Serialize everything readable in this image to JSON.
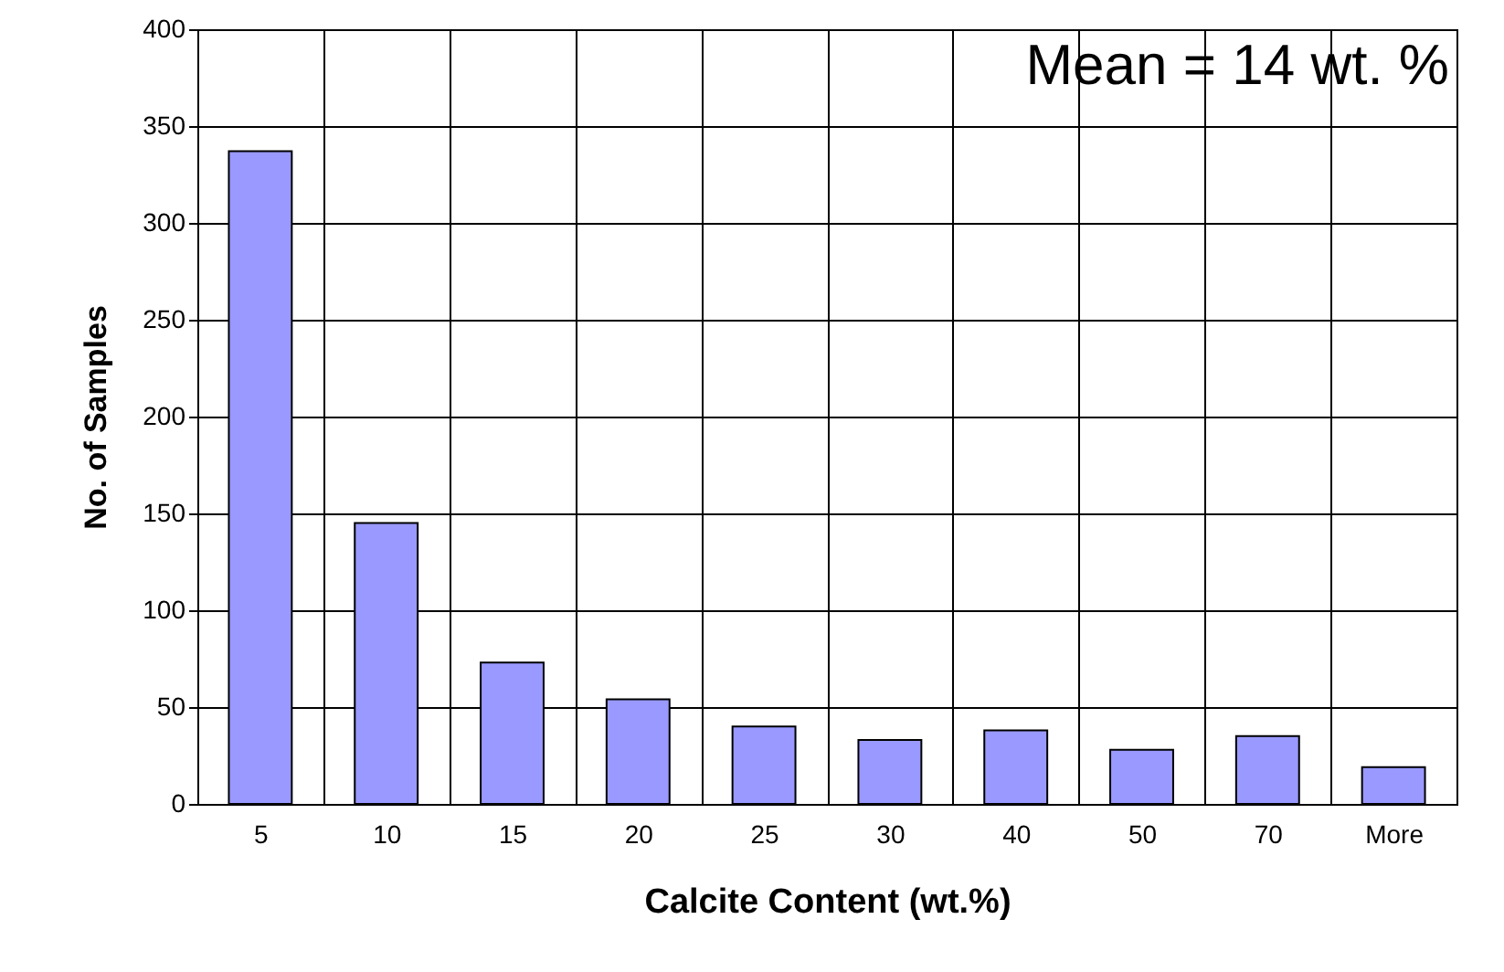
{
  "chart_data": {
    "type": "bar",
    "xlabel": "Calcite Content (wt.%)",
    "ylabel": "No. of Samples",
    "categories": [
      "5",
      "10",
      "15",
      "20",
      "25",
      "30",
      "40",
      "50",
      "70",
      "More"
    ],
    "values": [
      337,
      145,
      73,
      54,
      40,
      33,
      38,
      28,
      35,
      19
    ],
    "color": "#9999ff",
    "ylim": [
      0,
      400
    ],
    "yticks": [
      0,
      50,
      100,
      150,
      200,
      250,
      300,
      350,
      400
    ],
    "grid": true,
    "annotations": [
      "Mean = 14 wt. %"
    ]
  }
}
